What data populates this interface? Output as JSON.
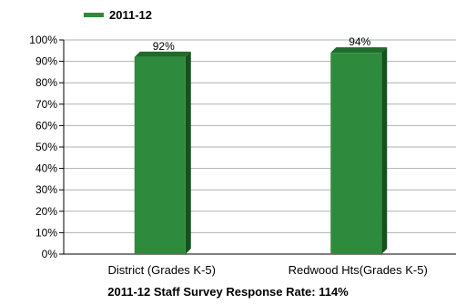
{
  "chart_data": {
    "type": "bar",
    "categories": [
      "District (Grades K-5)",
      "Redwood Hts(Grades K-5)"
    ],
    "series": [
      {
        "name": "2011-12",
        "values": [
          92,
          94
        ],
        "labels": [
          "92%",
          "94%"
        ]
      }
    ],
    "ylim": [
      0,
      100
    ],
    "yticks": [
      "0%",
      "10%",
      "20%",
      "30%",
      "40%",
      "50%",
      "60%",
      "70%",
      "80%",
      "90%",
      "100%"
    ],
    "grid": true,
    "legend": {
      "placement": "top-left"
    },
    "caption": "2011-12 Staff Survey Response Rate: 114%",
    "colors": {
      "bar_front": "#2e8b3d",
      "bar_side": "#14511f",
      "bar_top": "#1e6b2b",
      "grid": "#b0b0b0",
      "axis": "#000000"
    }
  }
}
